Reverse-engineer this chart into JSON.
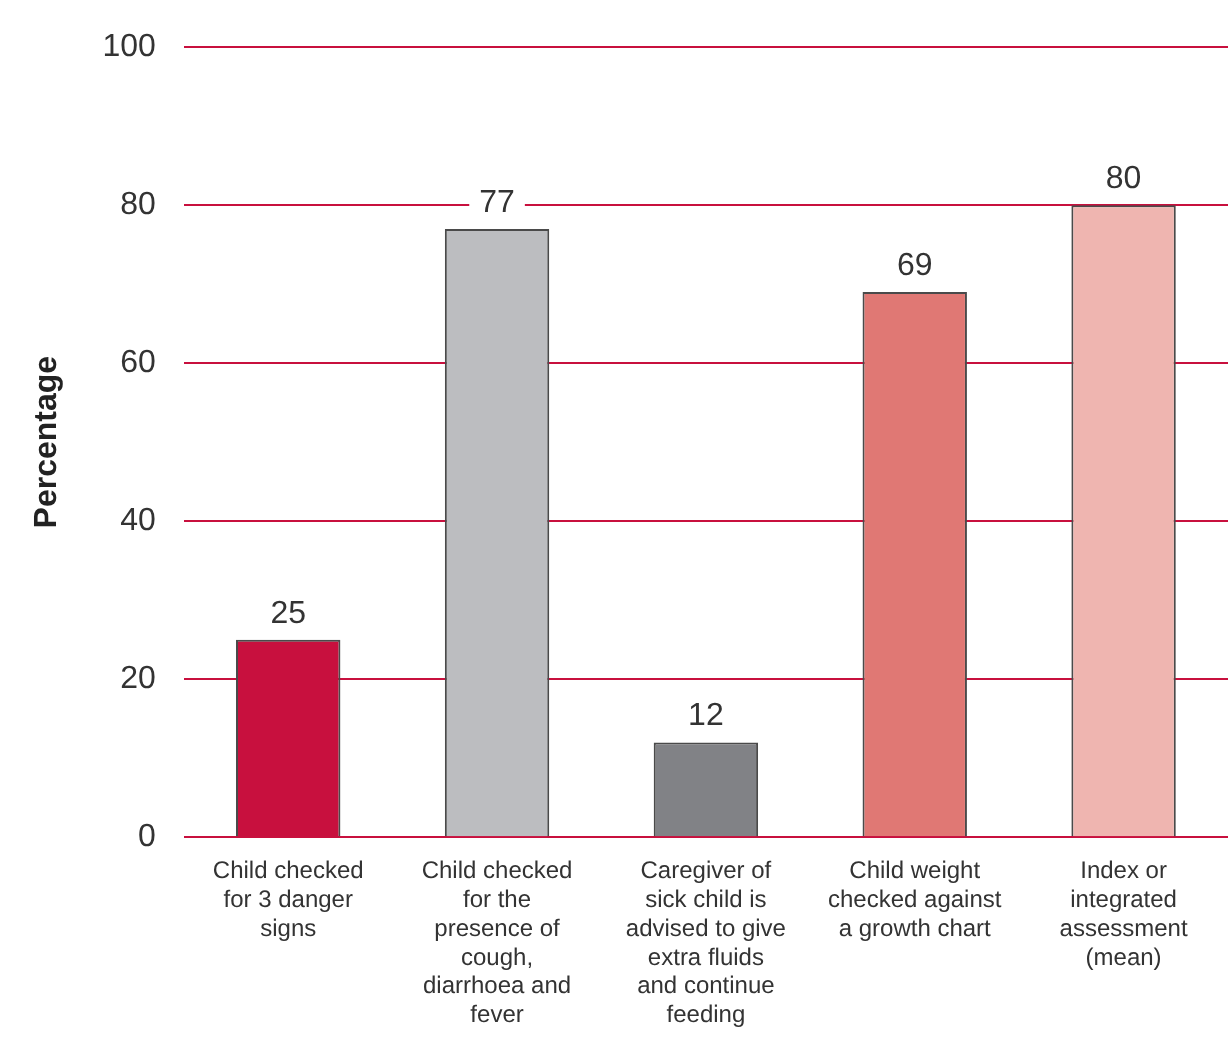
{
  "chart_data": {
    "type": "bar",
    "ylabel": "Percentage",
    "categories": [
      "Child checked for 3 danger signs",
      "Child checked for the presence of cough, diarrhoea and fever",
      "Caregiver of sick child is advised to give extra fluids and continue feeding",
      "Child weight checked against a growth chart",
      "Index or integrated assessment (mean)"
    ],
    "values": [
      25,
      77,
      12,
      69,
      80
    ],
    "colors": [
      "#c8103e",
      "#bcbdc0",
      "#818286",
      "#e07874",
      "#efb5b0"
    ],
    "ylim": [
      0,
      100
    ],
    "yticks": [
      0,
      20,
      40,
      60,
      80,
      100
    ],
    "grid": "y",
    "data_labels": true,
    "legend": false
  }
}
